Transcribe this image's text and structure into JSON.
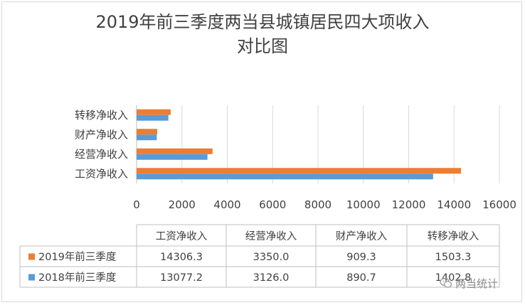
{
  "chart_data": {
    "type": "bar",
    "orientation": "horizontal",
    "title_line1": "2019年前三季度两当县城镇居民四大项收入",
    "title_line2": "对比图",
    "categories": [
      "工资净收入",
      "经营净收入",
      "财产净收入",
      "转移净收入"
    ],
    "xlim": [
      0,
      16000
    ],
    "x_ticks": [
      "0",
      "2000",
      "4000",
      "6000",
      "8000",
      "10000",
      "12000",
      "14000",
      "16000"
    ],
    "grid": true,
    "series": [
      {
        "name": "2019年前三季度",
        "color": "#ed7d31",
        "values": [
          14306.3,
          3350.0,
          909.3,
          1503.3
        ],
        "labels": [
          "14306.3",
          "3350.0",
          "909.3",
          "1503.3"
        ]
      },
      {
        "name": "2018年前三季度",
        "color": "#5b9bd5",
        "values": [
          13077.2,
          3126.0,
          890.7,
          1402.8
        ],
        "labels": [
          "13077.2",
          "3126.0",
          "890.7",
          "1402.8"
        ]
      }
    ],
    "legend_placement": "data-table"
  },
  "watermark": {
    "text": "两当统计",
    "icon": "wechat-icon"
  }
}
